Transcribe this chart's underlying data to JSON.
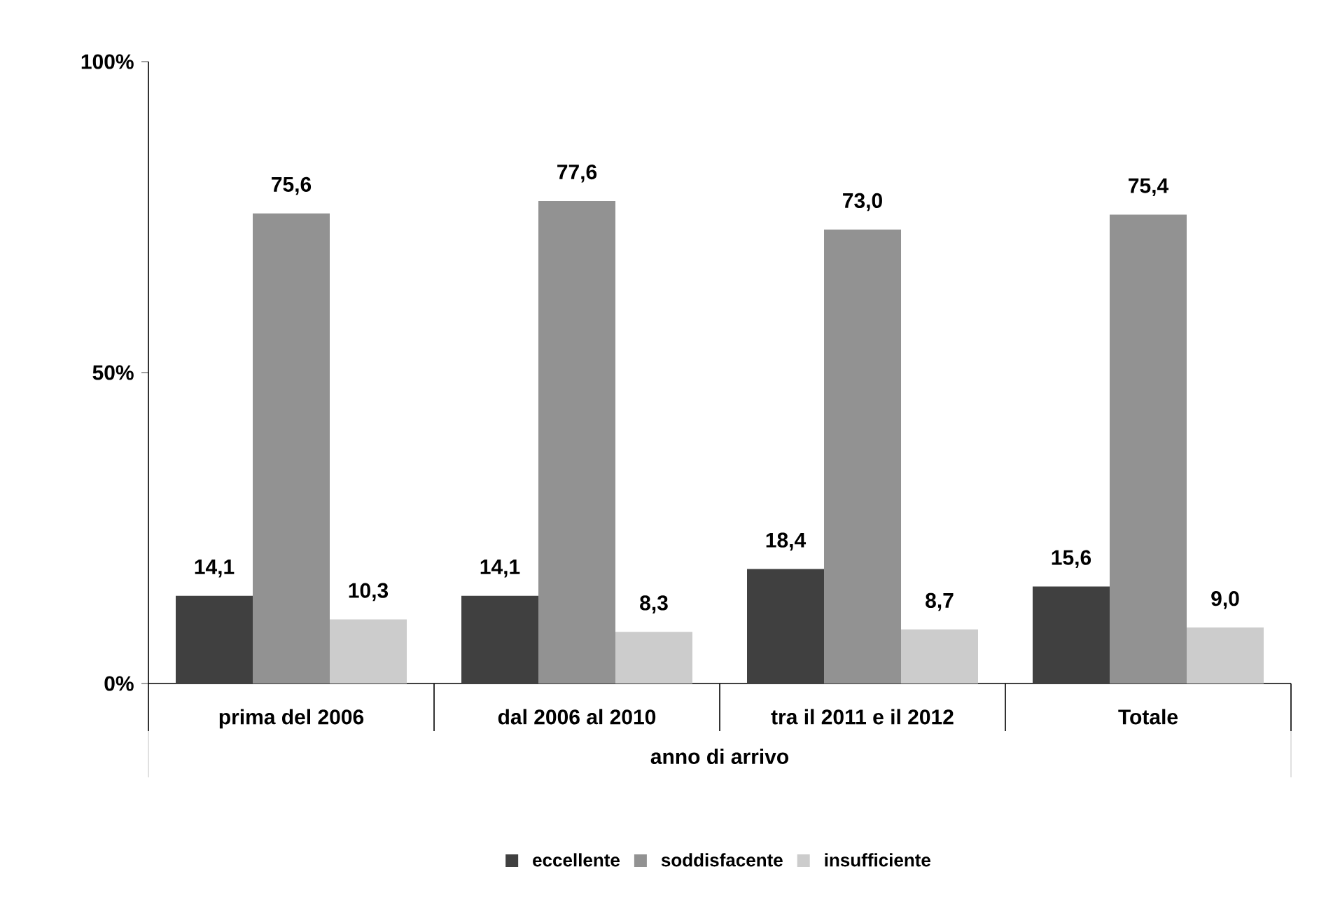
{
  "chart_data": {
    "type": "bar",
    "xlabel": "anno di arrivo",
    "categories": [
      "prima del 2006",
      "dal 2006 al 2010",
      "tra il 2011 e il 2012",
      "Totale"
    ],
    "series": [
      {
        "name": "eccellente",
        "color": "#404040",
        "values": [
          14.1,
          14.1,
          18.4,
          15.6
        ],
        "value_labels": [
          "14,1",
          "14,1",
          "18,4",
          "15,6"
        ]
      },
      {
        "name": "soddisfacente",
        "color": "#929292",
        "values": [
          75.6,
          77.6,
          73.0,
          75.4
        ],
        "value_labels": [
          "75,6",
          "77,6",
          "73,0",
          "75,4"
        ]
      },
      {
        "name": "insufficiente",
        "color": "#cccccc",
        "values": [
          10.3,
          8.3,
          8.7,
          9.0
        ],
        "value_labels": [
          "10,3",
          "8,3",
          "8,7",
          "9,0"
        ]
      }
    ],
    "ylim": [
      0,
      100
    ],
    "yticks": [
      {
        "value": 0,
        "label": "0%"
      },
      {
        "value": 50,
        "label": "50%"
      },
      {
        "value": 100,
        "label": "100%"
      }
    ],
    "grid": false,
    "legend": "bottom"
  }
}
